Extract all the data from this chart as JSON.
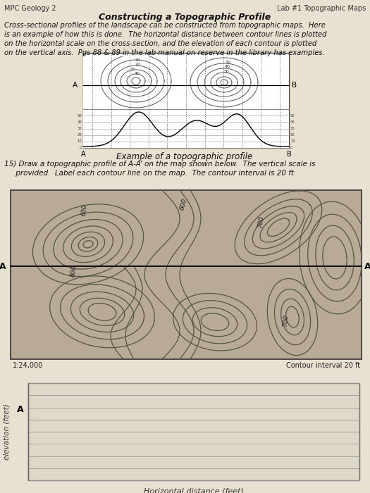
{
  "page_bg": "#e8e0d0",
  "header_left": "MPC Geology 2",
  "header_right": "Lab #1 Topographic Maps",
  "title": "Constructing a Topographic Profile",
  "body_text_lines": [
    "Cross-sectional profiles of the landscape can be constructed from topographic maps.  Here",
    "is an example of how this is done.  The horizontal distance between contour lines is plotted",
    "on the horizontal scale on the cross-section, and the elevation of each contour is plotted",
    "on the vertical axis.  Pgs 88 & 89 in the lab manual on reserve in the library has examples."
  ],
  "example_caption": "Example of a topographic profile",
  "question_text_lines": [
    "15) Draw a topographic profile of A-A’ on the map shown below.  The vertical scale is",
    "     provided.  Label each contour line on the map.  The contour interval is 20 ft."
  ],
  "scale_label": "1:24,000",
  "contour_interval_label": "Contour interval 20 ft",
  "axis_label_x": "Horizontal distance (feet)",
  "axis_label_y": "elevation (feet)",
  "tmap_bg": "#b8aa96",
  "tmap_contour_color": "#555544",
  "example_map_bg": "white",
  "profile_grid_bg": "#ddd8c8"
}
